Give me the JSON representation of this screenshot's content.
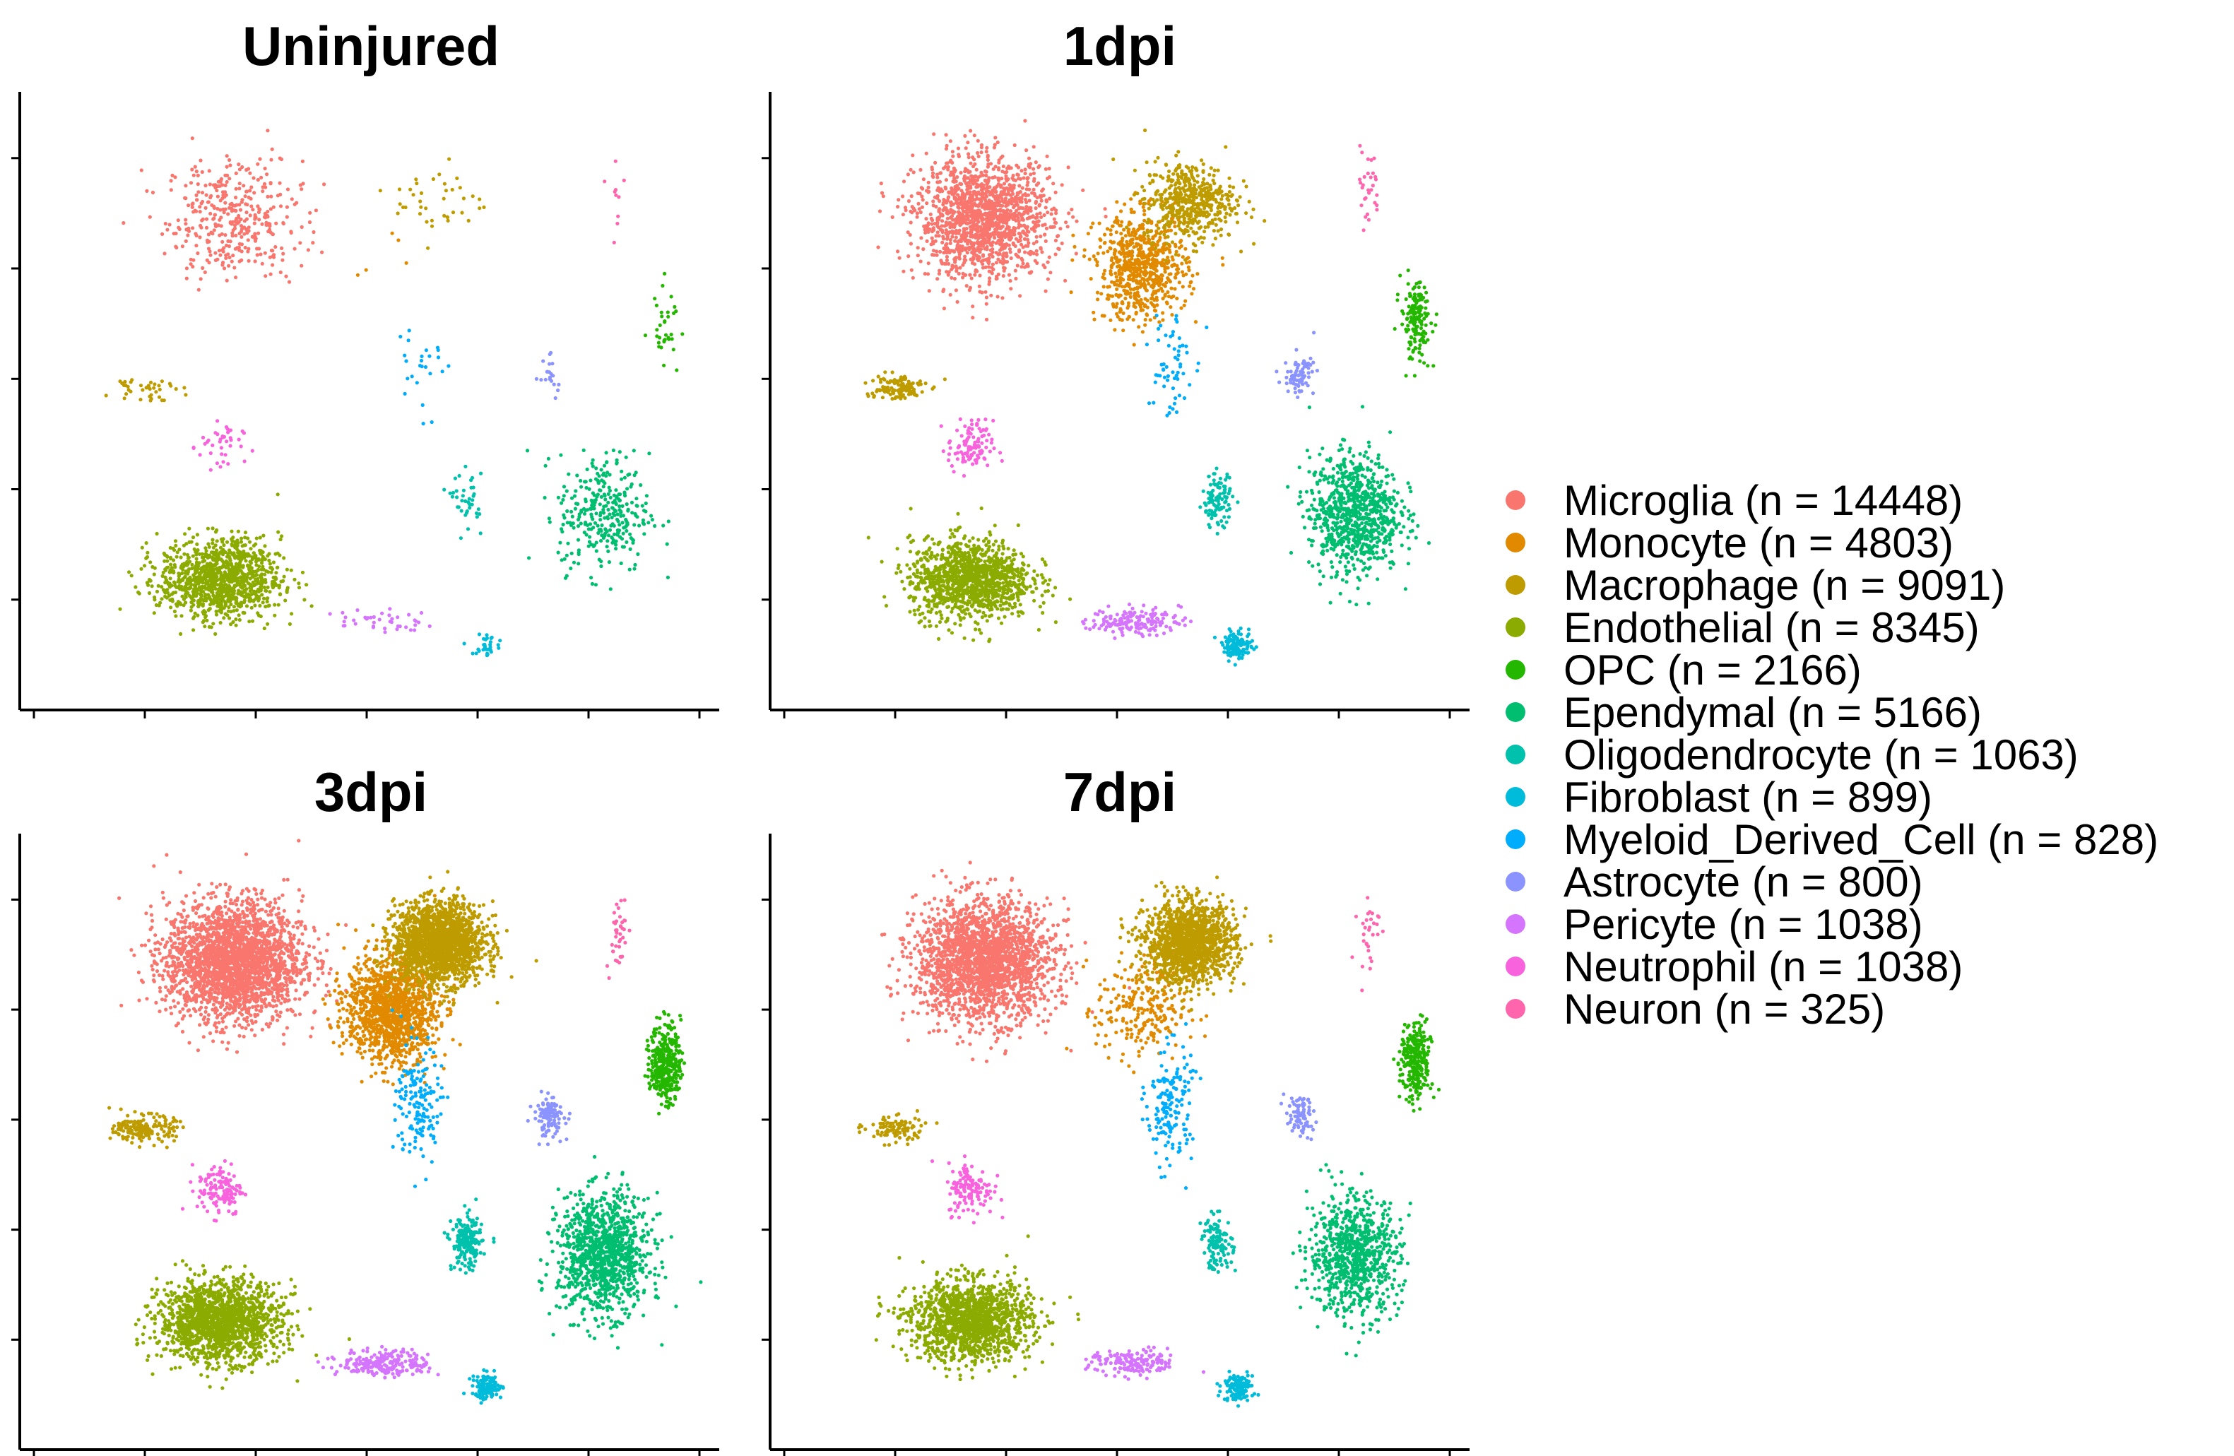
{
  "chart_data": {
    "type": "scatter",
    "description_kind": "UMAP-style cell embedding, split by condition",
    "panels": [
      "Uninjured",
      "1dpi",
      "3dpi",
      "7dpi"
    ],
    "xlim": [
      0,
      100
    ],
    "ylim": [
      0,
      100
    ],
    "grid": false,
    "axis_tick_labels": false,
    "legend_position": "right",
    "legend": [
      {
        "label": "Microglia (n = 14448)",
        "color": "#F8766D"
      },
      {
        "label": "Monocyte (n = 4803)",
        "color": "#E18A00"
      },
      {
        "label": "Macrophage (n = 9091)",
        "color": "#BE9C00"
      },
      {
        "label": "Endothelial (n = 8345)",
        "color": "#8CAB00"
      },
      {
        "label": "OPC (n = 2166)",
        "color": "#24B700"
      },
      {
        "label": "Ependymal (n = 5166)",
        "color": "#00BE70"
      },
      {
        "label": "Oligodendrocyte (n = 1063)",
        "color": "#00C1AB"
      },
      {
        "label": "Fibroblast (n = 899)",
        "color": "#00BBDA"
      },
      {
        "label": "Myeloid_Derived_Cell (n = 828)",
        "color": "#00ACFC"
      },
      {
        "label": "Astrocyte (n = 800)",
        "color": "#8B93FF"
      },
      {
        "label": "Pericyte (n = 1038)",
        "color": "#D575FE"
      },
      {
        "label": "Neutrophil (n = 1038)",
        "color": "#F962DD"
      },
      {
        "label": "Neuron (n = 325)",
        "color": "#FF65AC"
      }
    ],
    "clusters": [
      {
        "cell_type": "Microglia",
        "color_index": 0,
        "center": [
          30,
          80
        ],
        "spread": [
          9,
          9
        ],
        "counts": [
          380,
          1500,
          2400,
          2100
        ]
      },
      {
        "cell_type": "Monocyte",
        "color_index": 1,
        "center": [
          53,
          72
        ],
        "spread": [
          6,
          8
        ],
        "counts": [
          5,
          700,
          1300,
          250
        ]
      },
      {
        "cell_type": "Macrophage",
        "color_index": 2,
        "center": [
          60,
          83
        ],
        "spread": [
          6,
          6
        ],
        "counts": [
          40,
          500,
          1800,
          1400
        ]
      },
      {
        "cell_type": "Macrophage (small)",
        "color_index": 2,
        "center": [
          17,
          52
        ],
        "spread": [
          4,
          2
        ],
        "counts": [
          40,
          120,
          180,
          100
        ]
      },
      {
        "cell_type": "Endothelial",
        "color_index": 3,
        "center": [
          28,
          20
        ],
        "spread": [
          8,
          6
        ],
        "counts": [
          1100,
          1200,
          1600,
          1400
        ]
      },
      {
        "cell_type": "OPC",
        "color_index": 4,
        "center": [
          93,
          63
        ],
        "spread": [
          2,
          6
        ],
        "counts": [
          35,
          160,
          350,
          280
        ]
      },
      {
        "cell_type": "Ependymal",
        "color_index": 5,
        "center": [
          84,
          31
        ],
        "spread": [
          6,
          9
        ],
        "counts": [
          320,
          850,
          1100,
          800
        ]
      },
      {
        "cell_type": "Oligodendrocyte",
        "color_index": 6,
        "center": [
          64,
          33
        ],
        "spread": [
          2,
          4
        ],
        "counts": [
          40,
          110,
          200,
          120
        ]
      },
      {
        "cell_type": "Fibroblast",
        "color_index": 7,
        "center": [
          67,
          9
        ],
        "spread": [
          2,
          2
        ],
        "counts": [
          30,
          120,
          110,
          120
        ]
      },
      {
        "cell_type": "Myeloid_Derived_Cell",
        "color_index": 8,
        "center": [
          57,
          56
        ],
        "spread": [
          3,
          9
        ],
        "counts": [
          25,
          60,
          160,
          160
        ]
      },
      {
        "cell_type": "Astrocyte",
        "color_index": 9,
        "center": [
          76,
          54
        ],
        "spread": [
          2,
          3
        ],
        "counts": [
          20,
          80,
          110,
          80
        ]
      },
      {
        "cell_type": "Pericyte",
        "color_index": 10,
        "center": [
          52,
          13
        ],
        "spread": [
          6,
          2
        ],
        "counts": [
          40,
          160,
          220,
          160
        ]
      },
      {
        "cell_type": "Neutrophil",
        "color_index": 11,
        "center": [
          28,
          42
        ],
        "spread": [
          3,
          4
        ],
        "counts": [
          40,
          110,
          130,
          130
        ]
      },
      {
        "cell_type": "Neuron",
        "color_index": 12,
        "center": [
          86,
          85
        ],
        "spread": [
          1.5,
          6
        ],
        "counts": [
          10,
          30,
          40,
          30
        ]
      }
    ]
  }
}
